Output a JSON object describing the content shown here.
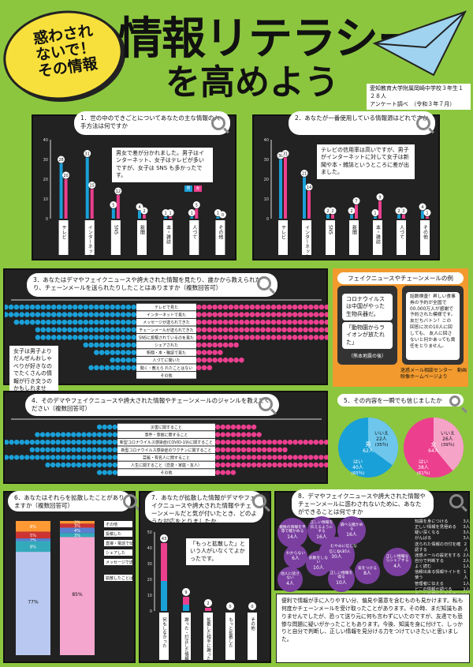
{
  "header": {
    "badge": "惑わされないで！その情報",
    "badge_lines": [
      "惑わされ",
      "ないで！",
      "その情報"
    ],
    "title_main": "情報リテラシー",
    "title_sub": "を高めよう",
    "survey_note_line1": "愛知教育大学附属岡崎中学校３年生１２８人",
    "survey_note_line2": "アンケート調べ　（令和３年７月）"
  },
  "colors": {
    "blue": "#1aa0d8",
    "pink": "#ec3f8e",
    "green": "#8cc63f",
    "purple": "#7b3fa0",
    "orange": "#f29a2e",
    "panel": "#222222"
  },
  "q1": {
    "title": "1．世の中のできごとについてあなたの主な情報の入手方法は何ですか",
    "callout": "男女で差が分かれました。男子はインターネット、女子はテレビが多いですが、女子は SNS も多かったです。",
    "legend": [
      "男",
      "女"
    ]
  },
  "q2": {
    "title": "2．あなたが一番使用している情報源はどれですか",
    "callout": "テレビの信用率は高いですが、男子がインターネットに対して女子は新聞や本・雑誌というところに差が出ました。"
  },
  "q3": {
    "title": "3．あなたはデマやフェイクニュースや誇大された情報を見たり、誰かから教えられたり、チェーンメールを送られたりしたことはありますか（複数回答可）",
    "callout": "女子は男子よりだんぜんおしゃべりが好きなのでたくさんの情報が行き交うのかもしれません。",
    "rows": [
      "テレビで見た",
      "インターネットで見た",
      "メッセージが送られてきた",
      "チェーンメールが送られてきた",
      "SNSに投稿されているのを見た",
      "シェアされた",
      "新聞・本・雑誌で見た",
      "人づてに聞いた",
      "聞く・教えら れたことはない",
      "その他"
    ]
  },
  "fake": {
    "title": "フェイクニュースやチェーンメールの例",
    "left_msgs": [
      "コロナウイルスは中国がやった生物兵器だ。",
      "「動物園からライオンが放たれた」"
    ],
    "left_caption": "（熊本地震の後）",
    "right_msg": "話数検査！昇しい食事券の予約が全国で00.000万人が感謝で予約された模様です。友だちバトン！この回答に次の10人に回しても、 友人に回さないと何かあっても責任をとりません。",
    "footer": "迷惑メール相談センター　動画映像ホームページより"
  },
  "q4": {
    "title": "4．そのデマやフェイクニュースや誇大された情報やチェーンメールのジャンルを教えてください（複数回答可）",
    "rows": [
      "災害に関すること",
      "事件・事故に関すること",
      "新型コロナウイルス感染症(COVID-19)に関すること",
      "新型コロナウイルス感染症のワクチンに関すること",
      "芸能・有名人に関すること",
      "人生に関すること（恋愛・家庭・友人）",
      "その他"
    ]
  },
  "q5": {
    "title": "5．その内容を一瞬でも信じましたか",
    "male": {
      "label": "男",
      "total": "62人",
      "no_count": "22人",
      "no_pct": "(35％)",
      "yes_count": "40人",
      "yes_pct": "(65％)"
    },
    "female": {
      "label": "女",
      "total": "64人",
      "no_count": "26人",
      "no_pct": "(39％)",
      "yes_count": "38人",
      "yes_pct": "(61％)"
    },
    "labels": {
      "yes": "はい",
      "no": "いいえ"
    }
  },
  "q6": {
    "title": "6．あなたはそれらを拡散したことがありますか（複数回答可）",
    "male_pct": "77%",
    "female_pct": "85%",
    "legend": [
      "その他",
      "投稿した",
      "直接・電話で伝えた",
      "シェアした",
      "メッセージで送った",
      "拡散したことはない"
    ],
    "small_pcts_male": [
      "8%",
      "5%",
      "2%",
      "8%"
    ],
    "small_pcts_female": [
      "2%",
      "3%",
      "4%",
      "3%"
    ]
  },
  "q7": {
    "title": "7．あなたが拡散した情報がデマやフェイクニュースや誇大された情報やチェーンメールだと気が付いたとき、どのような対応をとりましたか",
    "callout": "「もっと拡散した」という人がいなくてよかったです。",
    "bars": [
      {
        "label": "何もしなかった",
        "male": 19,
        "female": 24
      },
      {
        "label": "謝った・訂正した情報を調べた",
        "male": 4,
        "female": 5
      },
      {
        "label": "拡散した相手に謝った",
        "male": 0,
        "female": 2
      },
      {
        "label": "もっと拡散した",
        "male": 0,
        "female": 0
      },
      {
        "label": "その他",
        "male": 0,
        "female": 0
      }
    ]
  },
  "q8": {
    "title": "8．デマやフェイクニュースや誇大された情報やチェーンメールに惑わされないために、あなたができることは何ですか",
    "circles": [
      {
        "t": "複数の情報を平等で確かめる",
        "n": "14人"
      },
      {
        "t": "正しい情報を伝えるようにする",
        "n": "16人"
      },
      {
        "t": "調べる確かめる",
        "n": "16人"
      },
      {
        "t": "信じない",
        "n": "30人"
      },
      {
        "t": "むやみに信じない",
        "n": "10人"
      },
      {
        "t": "わからない",
        "n": "6人"
      },
      {
        "t": "拡散をしない",
        "n": "10人"
      },
      {
        "t": "他人に話さない",
        "n": "4人"
      },
      {
        "t": "正しい情報を得る",
        "n": "10人"
      },
      {
        "t": "気をつける",
        "n": "8人"
      },
      {
        "t": "正しい情報ならシェアする",
        "n": "4人"
      }
    ],
    "list": [
      [
        "知識を身につける",
        "3人"
      ],
      [
        "正しい情報を見極める",
        "3人"
      ],
      [
        "疑い深くなる",
        "3人"
      ],
      [
        "がんばる",
        "3人"
      ],
      [
        "送られた情報の日付を確認する",
        "2人"
      ],
      [
        "迷惑メールの設定をする",
        "2人"
      ],
      [
        "自分で判断する",
        "2人"
      ],
      [
        "よく読む",
        "1人"
      ],
      [
        "信頼出来る情報サイトを使う",
        "1人"
      ],
      [
        "管理者に伝える",
        "1人"
      ],
      [
        "どこの情報か調べる",
        "1人"
      ],
      [
        "ネットで見たものをすぐに信用しない",
        "1人"
      ],
      [
        "その他",
        "1人"
      ]
    ]
  },
  "conclusion": "便利で情報が手に入りやすい分、偏見や悪意を含むものも見かけます。私も何度かチェーンメールを受け取ったことがあります。その時、まだ知識もありませんでしたが、恐って送り元に何も言わずにいたのですが、友達でも悲惨な問題に疑いがかったこともあります。今後、知識を身に付けて、しっかりと自分で判断し、正しい情報を見分ける力をつけていきたいと思いました。"
}
